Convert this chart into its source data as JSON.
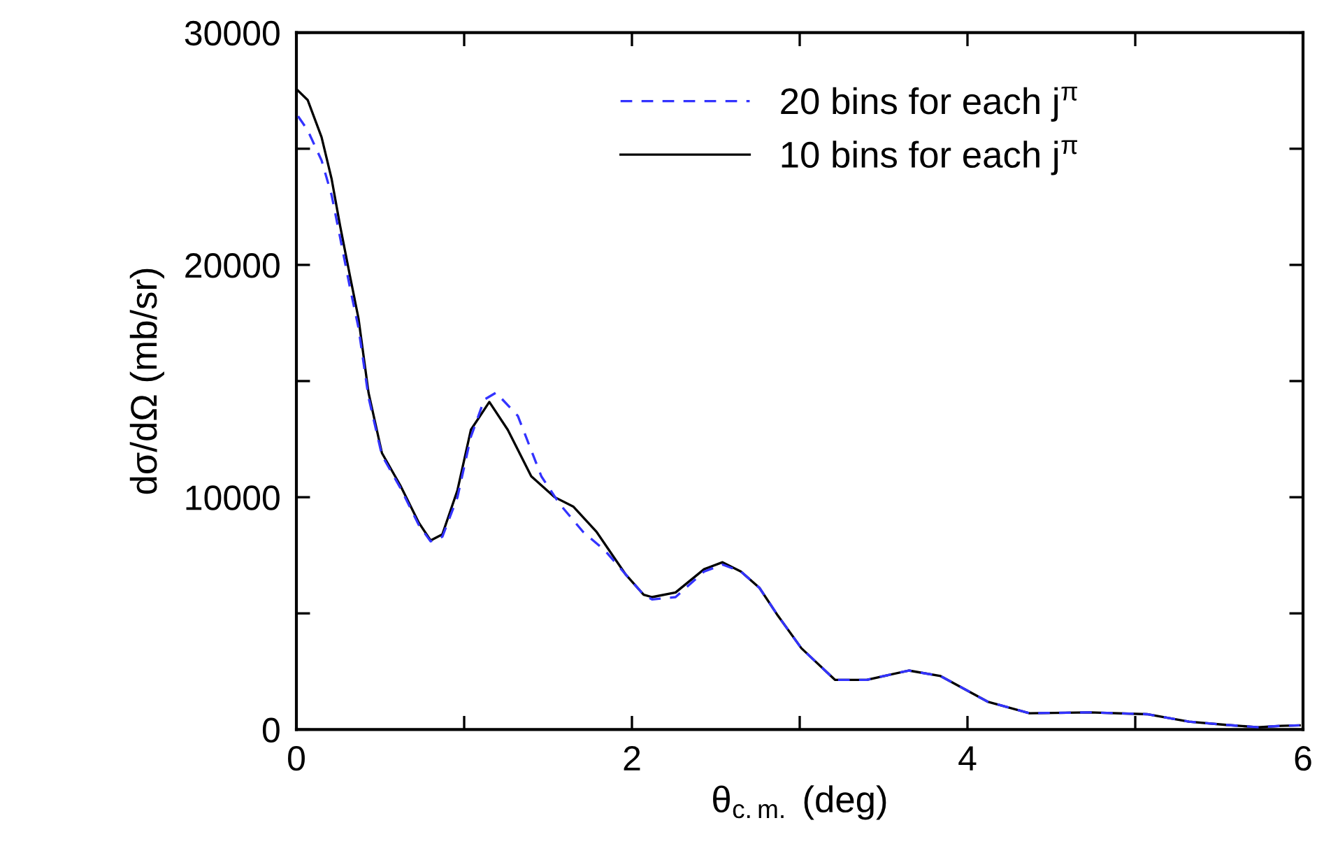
{
  "chart_data": {
    "type": "line",
    "xlabel": "θ$_{c.m.}$ (deg)",
    "ylabel": "dσ/dΩ (mb/sr)",
    "xlim": [
      0,
      6
    ],
    "ylim": [
      0,
      30000
    ],
    "xticks": [
      0,
      {
        "value": 1,
        "label": null
      },
      2,
      {
        "value": 3,
        "label": null
      },
      4,
      {
        "value": 5,
        "label": null
      },
      6
    ],
    "yticks": [
      0,
      {
        "value": 5000,
        "label": null
      },
      10000,
      {
        "value": 15000,
        "label": null
      },
      20000,
      {
        "value": 25000,
        "label": null
      },
      30000
    ],
    "legend": "top",
    "grid": false,
    "series": [
      {
        "name": "20 bins for each j$^{π}$",
        "color": "#3333ff",
        "line_style": "dashed",
        "x": [
          0.01,
          0.067,
          0.15,
          0.21,
          0.26,
          0.32,
          0.37,
          0.43,
          0.51,
          0.62,
          0.73,
          0.8,
          0.87,
          0.96,
          1.04,
          1.12,
          1.19,
          1.32,
          1.46,
          1.57,
          1.71,
          1.84,
          1.96,
          2.07,
          2.12,
          2.26,
          2.43,
          2.54,
          2.65,
          2.76,
          2.87,
          3.01,
          3.21,
          3.4,
          3.65,
          3.84,
          4.12,
          4.37,
          4.73,
          5.07,
          5.32,
          5.54,
          5.73,
          5.87,
          5.98
        ],
        "values": [
          26400,
          25800,
          24500,
          23000,
          21200,
          19000,
          17300,
          14300,
          11800,
          10400,
          8800,
          8100,
          8300,
          10000,
          12600,
          14200,
          14500,
          13500,
          10900,
          9700,
          8500,
          7700,
          6700,
          5800,
          5600,
          5700,
          6800,
          7100,
          6800,
          6100,
          4900,
          3500,
          2140,
          2140,
          2540,
          2300,
          1200,
          700,
          740,
          660,
          340,
          200,
          100,
          160,
          180
        ]
      },
      {
        "name": "10 bins for each j$^{π}$",
        "color": "#000000",
        "line_style": "solid",
        "x": [
          0.01,
          0.067,
          0.15,
          0.21,
          0.26,
          0.32,
          0.37,
          0.43,
          0.51,
          0.62,
          0.73,
          0.8,
          0.87,
          0.96,
          1.04,
          1.15,
          1.26,
          1.4,
          1.54,
          1.65,
          1.79,
          1.96,
          2.07,
          2.12,
          2.26,
          2.43,
          2.54,
          2.65,
          2.76,
          2.87,
          3.01,
          3.21,
          3.4,
          3.65,
          3.84,
          4.12,
          4.37,
          4.73,
          5.07,
          5.32,
          5.54,
          5.73,
          5.87,
          5.98
        ],
        "values": [
          27500,
          27100,
          25500,
          23700,
          21700,
          19500,
          17700,
          14500,
          11900,
          10500,
          8900,
          8140,
          8400,
          10300,
          12900,
          14100,
          12900,
          10900,
          10000,
          9600,
          8500,
          6700,
          5800,
          5700,
          5900,
          6900,
          7200,
          6800,
          6100,
          4900,
          3500,
          2140,
          2140,
          2540,
          2300,
          1200,
          700,
          740,
          660,
          340,
          200,
          100,
          160,
          180
        ]
      }
    ]
  }
}
